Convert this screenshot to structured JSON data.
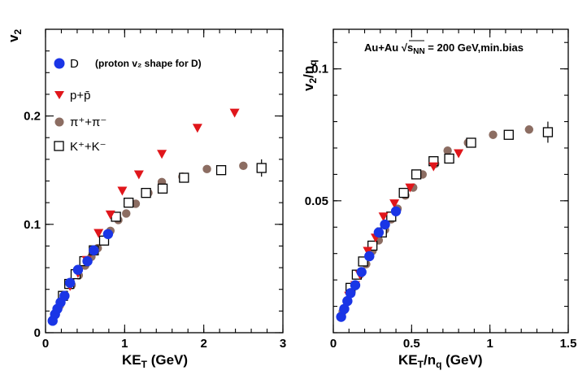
{
  "chart_data": [
    {
      "type": "scatter",
      "xlabel": "KE",
      "xlabel_sub": "T",
      "xlabel_unit": " (GeV)",
      "ylabel": "v",
      "ylabel_sub": "2",
      "xlim": [
        0,
        3
      ],
      "ylim": [
        0,
        0.28
      ],
      "xticks": [
        0,
        1,
        2,
        3
      ],
      "xtick_labels": [
        "0",
        "1",
        "2",
        "3"
      ],
      "yticks": [
        0,
        0.1,
        0.2
      ],
      "ytick_labels": [
        "0",
        "0.1",
        "0.2"
      ],
      "legend_note": "(proton v₂ shape for D)",
      "series": [
        {
          "name": "D",
          "marker": "circle",
          "color": "#1a35e6",
          "x": [
            0.09,
            0.12,
            0.15,
            0.19,
            0.24,
            0.31,
            0.41,
            0.53,
            0.61,
            0.79
          ],
          "y": [
            0.011,
            0.017,
            0.022,
            0.028,
            0.034,
            0.046,
            0.058,
            0.066,
            0.076,
            0.091
          ]
        },
        {
          "name": "p+p̄",
          "marker": "triangle-down",
          "color": "#e0161b",
          "x": [
            0.31,
            0.41,
            0.52,
            0.67,
            0.82,
            0.97,
            1.18,
            1.47,
            1.92,
            2.39
          ],
          "y": [
            0.043,
            0.055,
            0.067,
            0.092,
            0.109,
            0.131,
            0.146,
            0.165,
            0.189,
            0.203
          ]
        },
        {
          "name": "π⁺+π⁻",
          "marker": "circle",
          "color": "#8c6d62",
          "x": [
            0.12,
            0.18,
            0.25,
            0.33,
            0.42,
            0.5,
            0.58,
            0.66,
            0.74,
            0.82,
            0.92,
            1.02,
            1.14,
            1.3,
            1.47,
            1.73,
            2.04,
            2.5
          ],
          "y": [
            0.016,
            0.025,
            0.034,
            0.044,
            0.053,
            0.062,
            0.07,
            0.078,
            0.086,
            0.094,
            0.104,
            0.11,
            0.119,
            0.129,
            0.139,
            0.144,
            0.151,
            0.154
          ]
        },
        {
          "name": "K⁺+K⁻",
          "marker": "square-open",
          "color": "#000000",
          "x": [
            0.22,
            0.3,
            0.38,
            0.49,
            0.61,
            0.74,
            0.89,
            1.05,
            1.27,
            1.48,
            1.75,
            2.22,
            2.73
          ],
          "y": [
            0.034,
            0.045,
            0.054,
            0.066,
            0.076,
            0.085,
            0.107,
            0.12,
            0.129,
            0.133,
            0.143,
            0.15,
            0.152
          ],
          "yerr": [
            0,
            0,
            0,
            0,
            0,
            0,
            0,
            0,
            0,
            0,
            0,
            0,
            0.008
          ]
        }
      ]
    },
    {
      "type": "scatter",
      "xlabel": "KE",
      "xlabel_sub": "T",
      "xlabel_mid": "/n",
      "xlabel_sub2": "q",
      "xlabel_unit": " (GeV)",
      "ylabel": "v",
      "ylabel_sub": "2",
      "ylabel_mid": "/n",
      "ylabel_sub2": "q",
      "annotation": "Au+Au √s",
      "annotation_sub": "NN",
      "annotation_tail": " = 200 GeV,min.bias",
      "xlim": [
        0,
        1.5
      ],
      "ylim": [
        0,
        0.115
      ],
      "xticks": [
        0,
        0.5,
        1,
        1.5
      ],
      "xtick_labels": [
        "0",
        "0.5",
        "1",
        "1.5"
      ],
      "yticks": [
        0.05,
        0.1
      ],
      "ytick_labels": [
        "0.05",
        "0.1"
      ],
      "series": [
        {
          "name": "D",
          "marker": "circle",
          "color": "#1a35e6",
          "x": [
            0.05,
            0.07,
            0.09,
            0.11,
            0.14,
            0.18,
            0.23,
            0.29,
            0.33,
            0.4
          ],
          "y": [
            0.006,
            0.009,
            0.012,
            0.015,
            0.018,
            0.023,
            0.029,
            0.038,
            0.041,
            0.046
          ]
        },
        {
          "name": "p+p̄",
          "marker": "triangle-down",
          "color": "#e0161b",
          "x": [
            0.1,
            0.14,
            0.17,
            0.22,
            0.27,
            0.32,
            0.39,
            0.49,
            0.64,
            0.8
          ],
          "y": [
            0.014,
            0.018,
            0.022,
            0.031,
            0.036,
            0.044,
            0.049,
            0.055,
            0.063,
            0.068
          ]
        },
        {
          "name": "π⁺+π⁻",
          "marker": "circle",
          "color": "#8c6d62",
          "x": [
            0.06,
            0.09,
            0.12,
            0.17,
            0.21,
            0.25,
            0.29,
            0.33,
            0.37,
            0.41,
            0.46,
            0.51,
            0.57,
            0.65,
            0.73,
            0.86,
            1.02,
            1.25
          ],
          "y": [
            0.008,
            0.012,
            0.017,
            0.022,
            0.026,
            0.031,
            0.035,
            0.039,
            0.043,
            0.047,
            0.052,
            0.055,
            0.06,
            0.064,
            0.069,
            0.072,
            0.075,
            0.077
          ]
        },
        {
          "name": "K⁺+K⁻",
          "marker": "square-open",
          "color": "#000000",
          "x": [
            0.11,
            0.15,
            0.19,
            0.25,
            0.31,
            0.37,
            0.45,
            0.53,
            0.64,
            0.74,
            0.88,
            1.12,
            1.37
          ],
          "y": [
            0.017,
            0.022,
            0.027,
            0.033,
            0.038,
            0.044,
            0.053,
            0.06,
            0.065,
            0.066,
            0.072,
            0.075,
            0.076
          ],
          "yerr": [
            0,
            0,
            0,
            0,
            0,
            0,
            0,
            0,
            0,
            0,
            0,
            0,
            0.004
          ]
        }
      ]
    }
  ]
}
